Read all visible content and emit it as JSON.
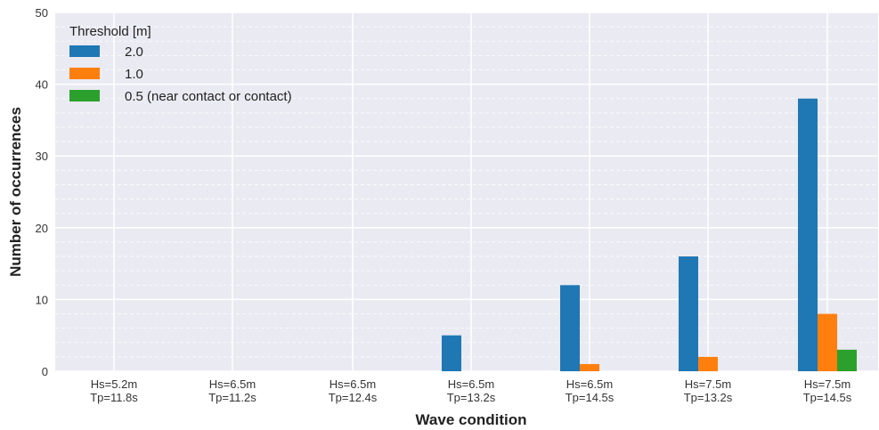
{
  "chart_data": {
    "type": "bar",
    "categories": [
      [
        "Hs=5.2m",
        "Tp=11.8s"
      ],
      [
        "Hs=6.5m",
        "Tp=11.2s"
      ],
      [
        "Hs=6.5m",
        "Tp=12.4s"
      ],
      [
        "Hs=6.5m",
        "Tp=13.2s"
      ],
      [
        "Hs=6.5m",
        "Tp=14.5s"
      ],
      [
        "Hs=7.5m",
        "Tp=13.2s"
      ],
      [
        "Hs=7.5m",
        "Tp=14.5s"
      ]
    ],
    "series": [
      {
        "name": "2.0",
        "color": "#1f77b4",
        "values": [
          0,
          0,
          0,
          5,
          12,
          16,
          38
        ]
      },
      {
        "name": "1.0",
        "color": "#ff7f0e",
        "values": [
          0,
          0,
          0,
          0,
          1,
          2,
          8
        ]
      },
      {
        "name": "0.5 (near contact or contact)",
        "color": "#2ca02c",
        "values": [
          0,
          0,
          0,
          0,
          0,
          0,
          3
        ]
      }
    ],
    "xlabel": "Wave condition",
    "ylabel": "Number of occurrences",
    "ylim": [
      0,
      50
    ],
    "yticks": [
      0,
      10,
      20,
      30,
      40,
      50
    ],
    "minor_grid_step": 2,
    "grid": true,
    "background": "#eaeaf2",
    "legend": {
      "title": "Threshold [m]",
      "placement": "top-left"
    }
  }
}
